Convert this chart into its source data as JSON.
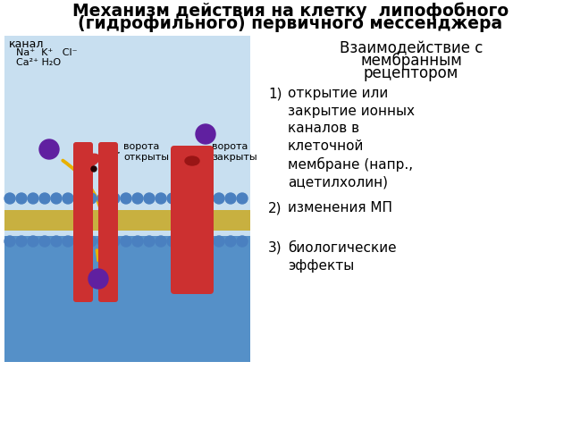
{
  "title_line1": "Механизм действия на клетку  липофобного",
  "title_line2": "(гидрофильного) первичного мессенджера",
  "bg_color": "#c8dff0",
  "cell_bg_color": "#5590c8",
  "lipid_ball_color": "#4a80c0",
  "lipid_tail_color": "#c8b040",
  "protein_color": "#cc3030",
  "messenger_color": "#6020a0",
  "arrow_color": "#e8b000",
  "channel_label": "канал",
  "ions_line1": "Na⁺  K⁺   Cl⁻",
  "ions_line2": "Ca²⁺ H₂O",
  "gate_open_label": "ворота\nоткрыты",
  "gate_closed_label": "ворота\nзакрыты",
  "header1": "Взаимодействие с",
  "header2": "мембранным",
  "header3": "рецептором",
  "item1_num": "1)",
  "item1_text": "открытие или\nзакрытие ионных\nканалов в\nклеточной\nмембране (напр.,\nацетилхолин)",
  "item2_num": "2)",
  "item2_text": "изменения МП",
  "item3_num": "3)",
  "item3_text": "биологические\nэффекты"
}
